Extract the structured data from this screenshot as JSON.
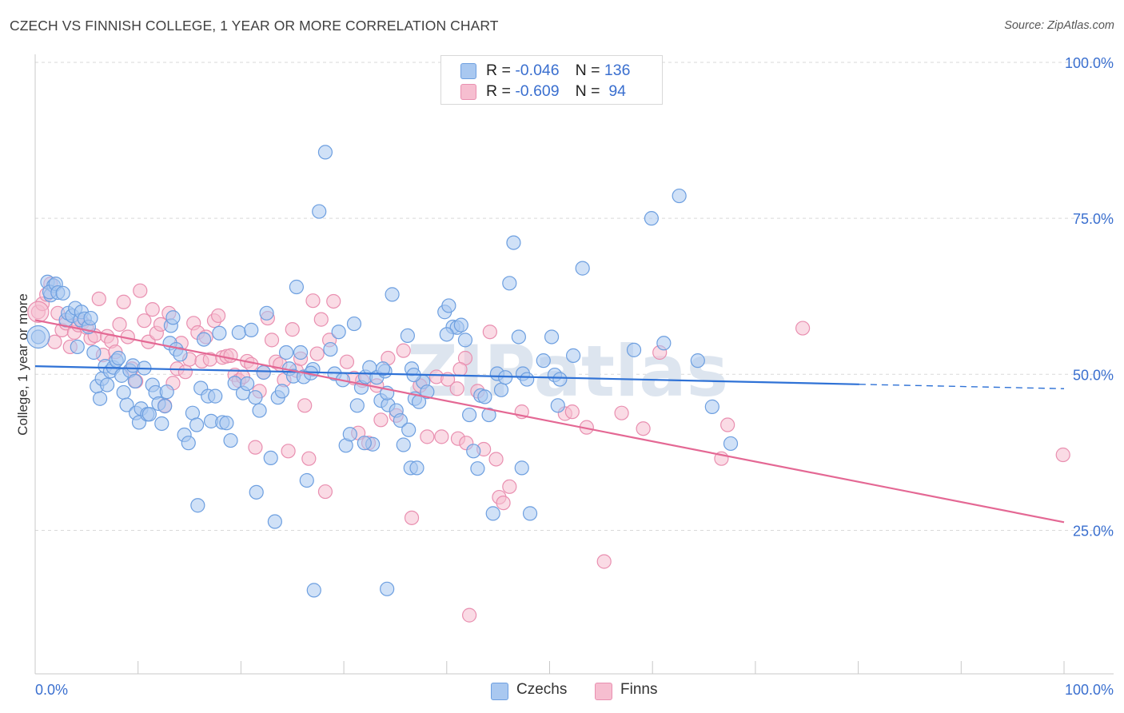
{
  "header": {
    "title": "CZECH VS FINNISH COLLEGE, 1 YEAR OR MORE CORRELATION CHART",
    "source": "Source: ZipAtlas.com"
  },
  "legend": {
    "czechs": {
      "r_label": "R = ",
      "r_value": "-0.046",
      "n_label": "N = ",
      "n_value": "136"
    },
    "finns": {
      "r_label": "R = ",
      "r_value": "-0.609",
      "n_label": "N = ",
      "n_value": " 94"
    }
  },
  "bottom_legend": {
    "czechs": "Czechs",
    "finns": "Finns"
  },
  "colors": {
    "czechs_fill": "#a9c8f0",
    "czechs_stroke": "#6d9fe0",
    "czechs_line": "#2f72d6",
    "finns_fill": "#f6bed0",
    "finns_stroke": "#e98fb0",
    "finns_line": "#e46894",
    "tick_label": "#3a6fcf",
    "grid": "#d9d9d9"
  },
  "chart_data": {
    "type": "scatter",
    "title": "CZECH VS FINNISH COLLEGE, 1 YEAR OR MORE CORRELATION CHART",
    "xlabel": "",
    "ylabel": "College, 1 year or more",
    "xlim": [
      0,
      100
    ],
    "ylim": [
      2,
      100
    ],
    "x_tick_labels": [
      "0.0%",
      "100.0%"
    ],
    "y_ticks": [
      25,
      50,
      75,
      100
    ],
    "y_tick_labels": [
      "25.0%",
      "50.0%",
      "75.0%",
      "100.0%"
    ],
    "grid": true,
    "watermark": "ZIPatlas",
    "series": [
      {
        "name": "Czechs",
        "r": -0.046,
        "n": 136,
        "trend": {
          "x0": 0,
          "y0": 51.3,
          "x1": 80.1,
          "y1": 48.4,
          "dash_x1": 100,
          "dash_y1": 47.7
        },
        "points": [
          [
            0.3,
            56
          ],
          [
            1.2,
            64.8
          ],
          [
            1.5,
            62.7
          ],
          [
            1.8,
            64.2
          ],
          [
            1.4,
            63.2
          ],
          [
            2.0,
            64.5
          ],
          [
            2.2,
            63.1
          ],
          [
            2.7,
            63.0
          ],
          [
            3.0,
            58.7
          ],
          [
            3.2,
            59.8
          ],
          [
            3.6,
            59.4
          ],
          [
            3.9,
            60.6
          ],
          [
            4.1,
            54.4
          ],
          [
            4.4,
            58.7
          ],
          [
            4.5,
            60.0
          ],
          [
            4.8,
            58.9
          ],
          [
            5.2,
            57.6
          ],
          [
            5.4,
            59.0
          ],
          [
            5.7,
            53.5
          ],
          [
            6.0,
            48.1
          ],
          [
            6.3,
            46.1
          ],
          [
            6.5,
            49.3
          ],
          [
            6.8,
            51.3
          ],
          [
            7.0,
            48.3
          ],
          [
            7.3,
            50.5
          ],
          [
            7.6,
            51.1
          ],
          [
            7.9,
            52.2
          ],
          [
            8.1,
            52.6
          ],
          [
            8.4,
            49.8
          ],
          [
            8.6,
            47.1
          ],
          [
            8.9,
            45.1
          ],
          [
            9.2,
            50.6
          ],
          [
            9.5,
            51.4
          ],
          [
            9.8,
            43.8
          ],
          [
            10.1,
            42.3
          ],
          [
            10.3,
            44.5
          ],
          [
            10.6,
            51.0
          ],
          [
            10.9,
            43.6
          ],
          [
            11.1,
            43.6
          ],
          [
            11.4,
            48.3
          ],
          [
            11.7,
            47.1
          ],
          [
            12.0,
            45.3
          ],
          [
            12.3,
            42.1
          ],
          [
            12.6,
            44.9
          ],
          [
            12.8,
            47.2
          ],
          [
            13.1,
            55.0
          ],
          [
            13.2,
            57.8
          ],
          [
            13.4,
            59.1
          ],
          [
            13.7,
            54.0
          ],
          [
            14.1,
            53.2
          ],
          [
            14.5,
            40.3
          ],
          [
            14.9,
            39.0
          ],
          [
            15.3,
            43.8
          ],
          [
            15.7,
            41.9
          ],
          [
            16.1,
            47.8
          ],
          [
            16.4,
            55.6
          ],
          [
            16.8,
            46.5
          ],
          [
            17.1,
            42.5
          ],
          [
            17.5,
            46.5
          ],
          [
            17.9,
            56.6
          ],
          [
            18.2,
            42.3
          ],
          [
            18.6,
            42.2
          ],
          [
            19.0,
            39.4
          ],
          [
            19.4,
            48.6
          ],
          [
            19.8,
            56.7
          ],
          [
            20.2,
            47.0
          ],
          [
            20.6,
            48.5
          ],
          [
            21.0,
            57.1
          ],
          [
            21.4,
            46.3
          ],
          [
            21.8,
            44.2
          ],
          [
            22.2,
            50.3
          ],
          [
            22.5,
            59.8
          ],
          [
            22.9,
            36.6
          ],
          [
            23.3,
            26.4
          ],
          [
            23.6,
            46.3
          ],
          [
            24.0,
            47.3
          ],
          [
            24.4,
            53.5
          ],
          [
            24.7,
            50.9
          ],
          [
            25.1,
            49.7
          ],
          [
            25.4,
            64.0
          ],
          [
            25.8,
            53.5
          ],
          [
            26.1,
            49.6
          ],
          [
            26.4,
            33.0
          ],
          [
            27.6,
            76.1
          ],
          [
            28.2,
            85.6
          ],
          [
            28.7,
            54.0
          ],
          [
            29.1,
            50.1
          ],
          [
            29.5,
            56.8
          ],
          [
            29.9,
            49.1
          ],
          [
            30.2,
            38.6
          ],
          [
            30.6,
            40.4
          ],
          [
            31.0,
            58.1
          ],
          [
            31.3,
            45.0
          ],
          [
            31.7,
            47.9
          ],
          [
            32.1,
            49.6
          ],
          [
            32.5,
            51.1
          ],
          [
            32.8,
            38.8
          ],
          [
            33.2,
            49.5
          ],
          [
            33.6,
            45.8
          ],
          [
            34.0,
            50.5
          ],
          [
            34.3,
            45.1
          ],
          [
            34.7,
            62.8
          ],
          [
            35.1,
            44.2
          ],
          [
            35.5,
            42.6
          ],
          [
            35.8,
            38.7
          ],
          [
            36.2,
            56.2
          ],
          [
            36.6,
            50.9
          ],
          [
            36.9,
            46.1
          ],
          [
            37.3,
            45.6
          ],
          [
            37.7,
            48.8
          ],
          [
            38.1,
            47.2
          ],
          [
            39.8,
            60.0
          ],
          [
            40.2,
            61.0
          ],
          [
            40.6,
            57.6
          ],
          [
            41.0,
            57.5
          ],
          [
            41.4,
            57.9
          ],
          [
            41.8,
            55.5
          ],
          [
            42.2,
            43.5
          ],
          [
            42.6,
            37.7
          ],
          [
            43.0,
            34.9
          ],
          [
            43.3,
            46.6
          ],
          [
            43.7,
            46.4
          ],
          [
            44.1,
            43.5
          ],
          [
            44.5,
            27.7
          ],
          [
            44.9,
            50.1
          ],
          [
            45.3,
            47.5
          ],
          [
            45.7,
            49.5
          ],
          [
            46.1,
            64.6
          ],
          [
            46.5,
            71.1
          ],
          [
            47.0,
            56.0
          ],
          [
            47.4,
            50.1
          ],
          [
            47.8,
            49.2
          ],
          [
            49.4,
            52.2
          ],
          [
            50.2,
            56.0
          ],
          [
            50.8,
            45.0
          ],
          [
            52.3,
            53.0
          ],
          [
            53.2,
            67.0
          ],
          [
            59.9,
            75.0
          ],
          [
            61.1,
            55.0
          ],
          [
            62.6,
            78.6
          ],
          [
            64.4,
            52.2
          ],
          [
            65.8,
            44.8
          ],
          [
            67.6,
            38.9
          ],
          [
            36.5,
            35.0
          ],
          [
            33.8,
            50.9
          ],
          [
            36.8,
            49.9
          ],
          [
            27.0,
            50.8
          ],
          [
            26.8,
            50.2
          ],
          [
            27.1,
            15.4
          ],
          [
            34.2,
            15.6
          ],
          [
            50.5,
            49.9
          ],
          [
            51.0,
            49.2
          ],
          [
            58.2,
            53.9
          ],
          [
            47.3,
            35.0
          ],
          [
            48.1,
            27.7
          ],
          [
            34.2,
            47.0
          ],
          [
            9.7,
            48.9
          ],
          [
            15.8,
            29.0
          ],
          [
            36.3,
            41.1
          ],
          [
            32.0,
            39.0
          ],
          [
            37.1,
            35.0
          ],
          [
            21.5,
            31.1
          ],
          [
            40.0,
            56.4
          ]
        ]
      },
      {
        "name": "Finns",
        "r": -0.609,
        "n": 94,
        "trend": {
          "x0": 0,
          "y0": 58.7,
          "x1": 100,
          "y1": 26.3
        },
        "points": [
          [
            0.3,
            60.0
          ],
          [
            0.7,
            61.3
          ],
          [
            1.1,
            62.8
          ],
          [
            1.5,
            64.5
          ],
          [
            1.9,
            55.2
          ],
          [
            2.2,
            59.8
          ],
          [
            2.6,
            57.1
          ],
          [
            3.0,
            58.2
          ],
          [
            3.4,
            54.4
          ],
          [
            3.8,
            56.7
          ],
          [
            4.2,
            57.9
          ],
          [
            4.6,
            58.3
          ],
          [
            5.0,
            57.5
          ],
          [
            5.4,
            55.8
          ],
          [
            5.8,
            56.2
          ],
          [
            6.2,
            62.1
          ],
          [
            6.6,
            53.1
          ],
          [
            7.0,
            56.1
          ],
          [
            7.4,
            55.3
          ],
          [
            7.8,
            53.6
          ],
          [
            8.2,
            58.0
          ],
          [
            8.6,
            61.6
          ],
          [
            9.0,
            56.0
          ],
          [
            9.4,
            50.9
          ],
          [
            9.8,
            48.9
          ],
          [
            10.2,
            63.4
          ],
          [
            10.6,
            58.6
          ],
          [
            11.0,
            55.2
          ],
          [
            11.4,
            60.4
          ],
          [
            11.8,
            56.6
          ],
          [
            12.2,
            58.0
          ],
          [
            12.6,
            45.0
          ],
          [
            13.0,
            59.8
          ],
          [
            13.4,
            48.6
          ],
          [
            13.8,
            50.9
          ],
          [
            14.2,
            55.0
          ],
          [
            14.6,
            50.4
          ],
          [
            15.0,
            52.4
          ],
          [
            15.4,
            58.2
          ],
          [
            15.8,
            56.7
          ],
          [
            16.2,
            52.1
          ],
          [
            16.6,
            56.0
          ],
          [
            17.0,
            52.4
          ],
          [
            17.4,
            58.6
          ],
          [
            17.8,
            59.4
          ],
          [
            18.2,
            52.7
          ],
          [
            18.6,
            52.9
          ],
          [
            19.0,
            53.0
          ],
          [
            19.4,
            49.9
          ],
          [
            19.8,
            49.0
          ],
          [
            20.2,
            49.6
          ],
          [
            20.6,
            52.1
          ],
          [
            21.0,
            51.6
          ],
          [
            21.4,
            38.3
          ],
          [
            21.8,
            47.3
          ],
          [
            22.2,
            50.3
          ],
          [
            22.6,
            59.0
          ],
          [
            23.0,
            55.5
          ],
          [
            23.4,
            52.0
          ],
          [
            23.8,
            51.6
          ],
          [
            24.2,
            49.1
          ],
          [
            24.6,
            37.7
          ],
          [
            25.0,
            57.2
          ],
          [
            25.4,
            50.6
          ],
          [
            25.8,
            52.5
          ],
          [
            26.2,
            45.0
          ],
          [
            26.6,
            36.5
          ],
          [
            27.0,
            61.8
          ],
          [
            27.4,
            53.3
          ],
          [
            27.8,
            58.8
          ],
          [
            28.2,
            31.2
          ],
          [
            28.6,
            55.5
          ],
          [
            29.0,
            61.7
          ],
          [
            30.3,
            52.0
          ],
          [
            31.0,
            49.4
          ],
          [
            31.4,
            40.6
          ],
          [
            31.8,
            49.0
          ],
          [
            32.4,
            39.0
          ],
          [
            33.2,
            48.2
          ],
          [
            33.6,
            42.7
          ],
          [
            34.3,
            52.6
          ],
          [
            35.1,
            43.4
          ],
          [
            35.8,
            53.8
          ],
          [
            36.6,
            27.0
          ],
          [
            37.4,
            48.2
          ],
          [
            38.1,
            40.0
          ],
          [
            39.0,
            49.6
          ],
          [
            39.5,
            40.0
          ],
          [
            40.1,
            49.2
          ],
          [
            41.0,
            47.7
          ],
          [
            41.8,
            52.6
          ],
          [
            41.1,
            39.7
          ],
          [
            41.3,
            50.8
          ],
          [
            41.9,
            39.0
          ],
          [
            42.2,
            11.4
          ],
          [
            43.0,
            47.3
          ],
          [
            43.6,
            38.0
          ],
          [
            44.8,
            36.4
          ],
          [
            44.2,
            56.8
          ],
          [
            45.1,
            30.3
          ],
          [
            45.5,
            29.4
          ],
          [
            46.1,
            32.0
          ],
          [
            47.3,
            44.0
          ],
          [
            51.5,
            43.7
          ],
          [
            52.2,
            44.0
          ],
          [
            53.6,
            41.5
          ],
          [
            55.3,
            20.0
          ],
          [
            57.0,
            43.8
          ],
          [
            59.1,
            41.3
          ],
          [
            60.7,
            53.5
          ],
          [
            66.7,
            36.5
          ],
          [
            67.3,
            41.9
          ],
          [
            74.6,
            57.4
          ],
          [
            99.9,
            37.1
          ]
        ]
      }
    ]
  }
}
